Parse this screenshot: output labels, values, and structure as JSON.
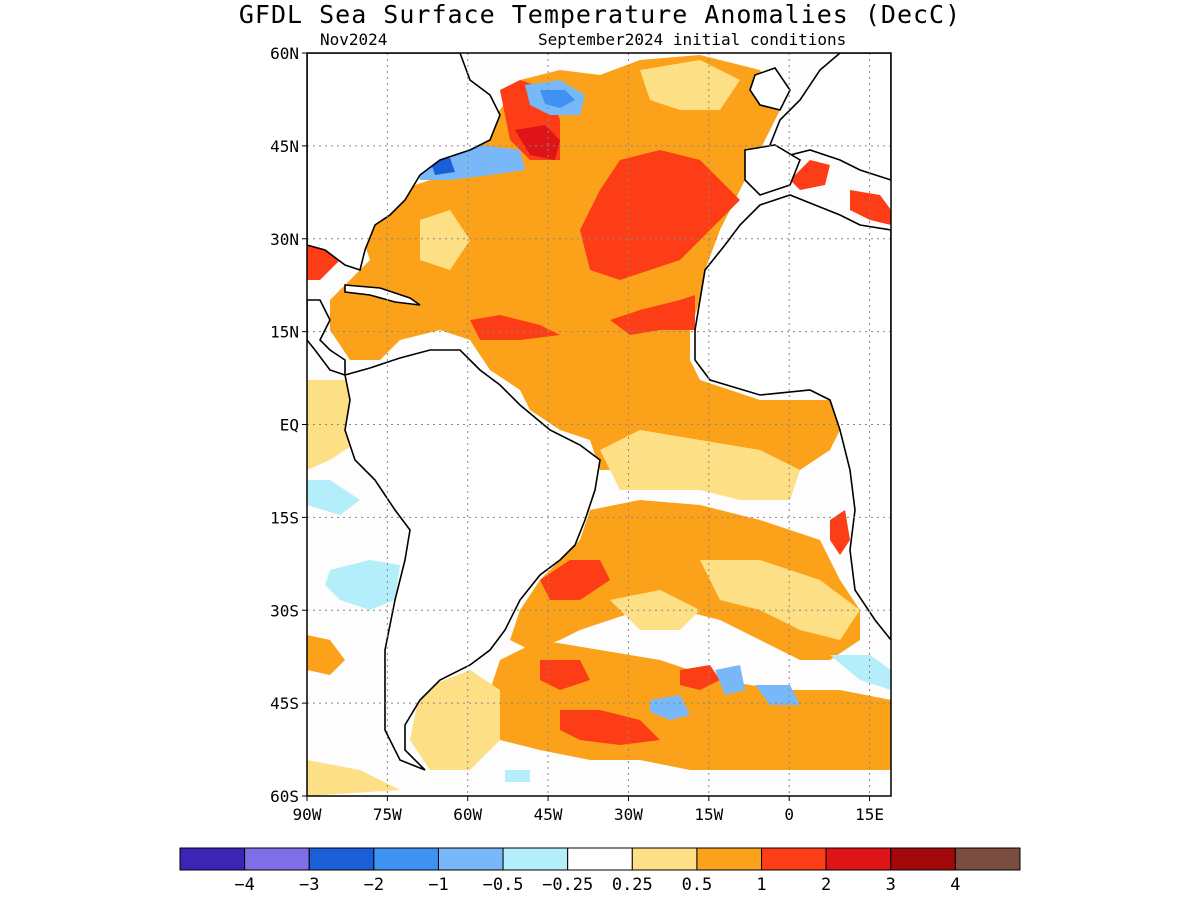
{
  "title": "GFDL Sea Surface Temperature Anomalies (DecC)",
  "subtitle_left": "Nov2024",
  "subtitle_right": "September2024 initial conditions",
  "map": {
    "lat_range": [
      -60,
      60
    ],
    "lon_range": [
      -90,
      19
    ],
    "grid": "dotted",
    "lat_ticks": [
      {
        "value": 60,
        "label": "60N"
      },
      {
        "value": 45,
        "label": "45N"
      },
      {
        "value": 30,
        "label": "30N"
      },
      {
        "value": 15,
        "label": "15N"
      },
      {
        "value": 0,
        "label": "EQ"
      },
      {
        "value": -15,
        "label": "15S"
      },
      {
        "value": -30,
        "label": "30S"
      },
      {
        "value": -45,
        "label": "45S"
      },
      {
        "value": -60,
        "label": "60S"
      }
    ],
    "lon_ticks": [
      {
        "value": -90,
        "label": "90W"
      },
      {
        "value": -75,
        "label": "75W"
      },
      {
        "value": -60,
        "label": "60W"
      },
      {
        "value": -45,
        "label": "45W"
      },
      {
        "value": -30,
        "label": "30W"
      },
      {
        "value": -15,
        "label": "15W"
      },
      {
        "value": 0,
        "label": "0"
      },
      {
        "value": 15,
        "label": "15E"
      }
    ]
  },
  "colorbar": {
    "colors": [
      "#3d24b4",
      "#7f6fe6",
      "#1a5fd8",
      "#3d92f2",
      "#78b8f8",
      "#b4eefa",
      "#ffffff",
      "#fde085",
      "#fba21a",
      "#fc3d15",
      "#de1418",
      "#a3080b",
      "#7a4d40"
    ],
    "labels": [
      "-4",
      "-3",
      "-2",
      "-1",
      "-0.5",
      "-0.25",
      "0.25",
      "0.5",
      "1",
      "2",
      "3",
      "4"
    ]
  }
}
